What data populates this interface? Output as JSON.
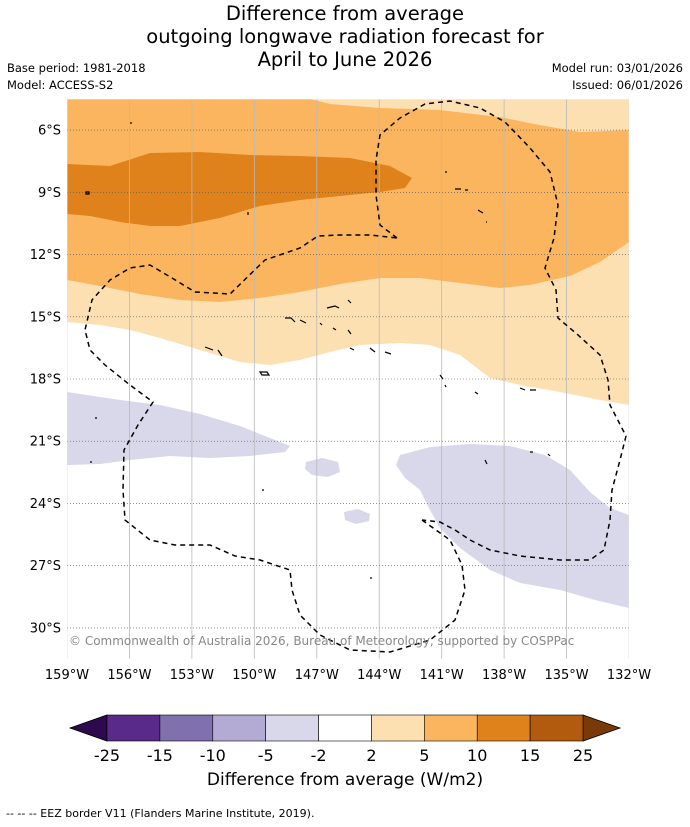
{
  "title_lines": [
    "Difference from average",
    "outgoing longwave radiation forecast for",
    "April to June 2026"
  ],
  "meta": {
    "base_period": "Base period: 1981-2018",
    "model": "Model: ACCESS-S2",
    "model_run": "Model run: 03/01/2026",
    "issued": "Issued: 06/01/2026"
  },
  "copyright": "© Commonwealth of Australia 2026, Bureau of Meteorology, supported by COSPPac",
  "footnote": "--  --  -- EEZ border V11 (Flanders Marine Institute, 2019).",
  "colors": {
    "c_m25_m15": "#5a2a8a",
    "c_m15_m10": "#8070ad",
    "c_m10_m5": "#b3abd3",
    "c_m5_m2": "#d8d8ea",
    "c_m2_2": "#ffffff",
    "c_2_5": "#fde0b2",
    "c_5_10": "#fbb55f",
    "c_10_15": "#e0821c",
    "c_15_25": "#b25a0e",
    "extend_low": "#2d0a4e",
    "extend_high": "#7a3a08"
  },
  "chart_data": {
    "type": "heatmap",
    "title": "Difference from average outgoing longwave radiation forecast for April to June 2026",
    "xlabel": "",
    "ylabel": "",
    "x_ticks": [
      "159°W",
      "156°W",
      "153°W",
      "150°W",
      "147°W",
      "144°W",
      "141°W",
      "138°W",
      "135°W",
      "132°W"
    ],
    "x_values": [
      -159,
      -156,
      -153,
      -150,
      -147,
      -144,
      -141,
      -138,
      -135,
      -132
    ],
    "y_ticks": [
      "6°S",
      "9°S",
      "12°S",
      "15°S",
      "18°S",
      "21°S",
      "24°S",
      "27°S",
      "30°S"
    ],
    "y_values": [
      -6,
      -9,
      -12,
      -15,
      -18,
      -21,
      -24,
      -27,
      -30
    ],
    "xlim": [
      -159,
      -132
    ],
    "ylim": [
      -31.5,
      -4.5
    ],
    "colorbar": {
      "label": "Difference from average (W/m2)",
      "tick_labels": [
        "-25",
        "-15",
        "-10",
        "-5",
        "-2",
        "2",
        "5",
        "10",
        "15",
        "25"
      ],
      "boundaries": [
        -25,
        -15,
        -10,
        -5,
        -2,
        2,
        5,
        10,
        15,
        25
      ],
      "extend": "both"
    },
    "regions": [
      {
        "range": "10 to 15",
        "lon_range": [
          -159,
          -141.5
        ],
        "lat_range": [
          -11,
          -7.5
        ]
      },
      {
        "range": "5 to 10",
        "lon_range": [
          -159,
          -132
        ],
        "lat_range": [
          -15,
          -4.5
        ]
      },
      {
        "range": "2 to 5",
        "lon_range": [
          -159,
          -132
        ],
        "lat_range": [
          -19,
          -4.5
        ]
      },
      {
        "range": "-5 to -2",
        "lon_range": [
          -159,
          -132
        ],
        "lat_range": [
          -29,
          -19.5
        ]
      }
    ]
  }
}
